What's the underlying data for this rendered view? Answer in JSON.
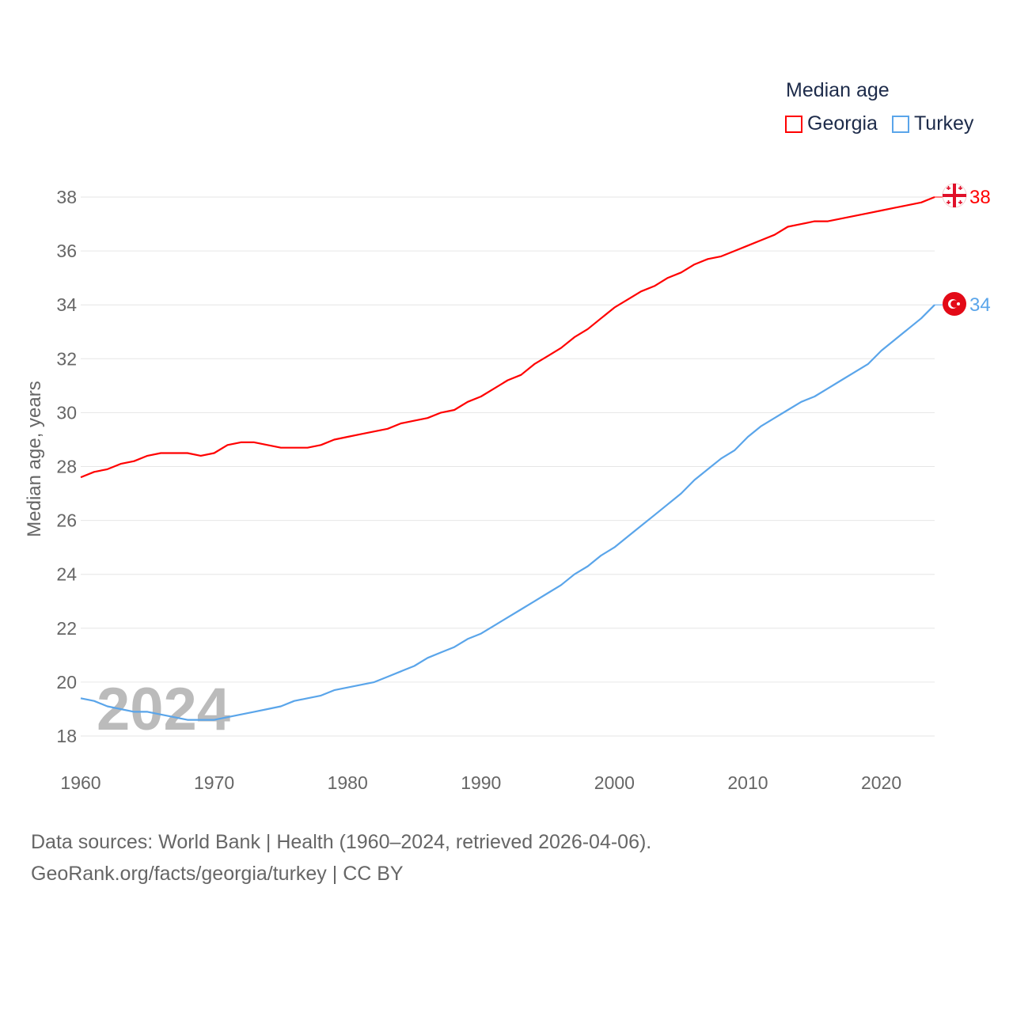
{
  "chart_data": {
    "type": "line",
    "title": "Median age",
    "xlabel": "",
    "ylabel": "Median age, years",
    "xlim": [
      1960,
      2024
    ],
    "ylim": [
      17,
      39
    ],
    "yticks": [
      18,
      20,
      22,
      24,
      26,
      28,
      30,
      32,
      34,
      36,
      38
    ],
    "xticks": [
      1960,
      1970,
      1980,
      1990,
      2000,
      2010,
      2020
    ],
    "grid": true,
    "legend_placement": "top-right",
    "year_watermark": "2024",
    "x": [
      1960,
      1961,
      1962,
      1963,
      1964,
      1965,
      1966,
      1967,
      1968,
      1969,
      1970,
      1971,
      1972,
      1973,
      1974,
      1975,
      1976,
      1977,
      1978,
      1979,
      1980,
      1981,
      1982,
      1983,
      1984,
      1985,
      1986,
      1987,
      1988,
      1989,
      1990,
      1991,
      1992,
      1993,
      1994,
      1995,
      1996,
      1997,
      1998,
      1999,
      2000,
      2001,
      2002,
      2003,
      2004,
      2005,
      2006,
      2007,
      2008,
      2009,
      2010,
      2011,
      2012,
      2013,
      2014,
      2015,
      2016,
      2017,
      2018,
      2019,
      2020,
      2021,
      2022,
      2023,
      2024
    ],
    "series": [
      {
        "name": "Georgia",
        "color": "#ff0000",
        "end_label": "38",
        "values": [
          27.6,
          27.8,
          27.9,
          28.1,
          28.2,
          28.4,
          28.5,
          28.5,
          28.5,
          28.4,
          28.5,
          28.8,
          28.9,
          28.9,
          28.8,
          28.7,
          28.7,
          28.7,
          28.8,
          29.0,
          29.1,
          29.2,
          29.3,
          29.4,
          29.6,
          29.7,
          29.8,
          30.0,
          30.1,
          30.4,
          30.6,
          30.9,
          31.2,
          31.4,
          31.8,
          32.1,
          32.4,
          32.8,
          33.1,
          33.5,
          33.9,
          34.2,
          34.5,
          34.7,
          35.0,
          35.2,
          35.5,
          35.7,
          35.8,
          36.0,
          36.2,
          36.4,
          36.6,
          36.9,
          37.0,
          37.1,
          37.1,
          37.2,
          37.3,
          37.4,
          37.5,
          37.6,
          37.7,
          37.8,
          38.0
        ]
      },
      {
        "name": "Turkey",
        "color": "#5aa5ea",
        "end_label": "34",
        "values": [
          19.4,
          19.3,
          19.1,
          19.0,
          18.9,
          18.9,
          18.8,
          18.7,
          18.6,
          18.6,
          18.6,
          18.7,
          18.8,
          18.9,
          19.0,
          19.1,
          19.3,
          19.4,
          19.5,
          19.7,
          19.8,
          19.9,
          20.0,
          20.2,
          20.4,
          20.6,
          20.9,
          21.1,
          21.3,
          21.6,
          21.8,
          22.1,
          22.4,
          22.7,
          23.0,
          23.3,
          23.6,
          24.0,
          24.3,
          24.7,
          25.0,
          25.4,
          25.8,
          26.2,
          26.6,
          27.0,
          27.5,
          27.9,
          28.3,
          28.6,
          29.1,
          29.5,
          29.8,
          30.1,
          30.4,
          30.6,
          30.9,
          31.2,
          31.5,
          31.8,
          32.3,
          32.7,
          33.1,
          33.5,
          34.0
        ]
      }
    ]
  },
  "footer": {
    "line1": "Data sources: World Bank | Health (1960–2024, retrieved 2026-04-06).",
    "line2": "GeoRank.org/facts/georgia/turkey | CC BY"
  }
}
